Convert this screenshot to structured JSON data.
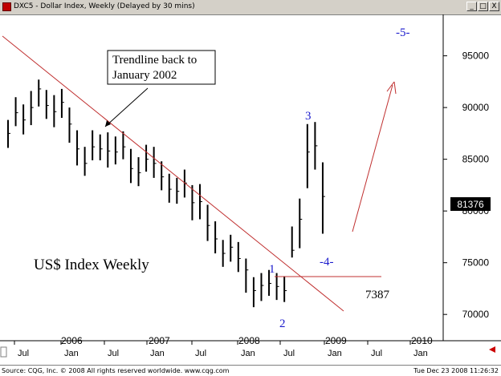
{
  "window": {
    "title": "DXC5 - Dollar Index, Weekly (Delayed by 30 mins)",
    "minimize_glyph": "_",
    "restore_glyph": "□",
    "close_glyph": "X"
  },
  "statusbar": {
    "left": "Source: CQG, Inc. © 2008 All rights reserved worldwide. www.cqg.com",
    "right": "Tue Dec 23 2008 11:26:32"
  },
  "colors": {
    "bars": "#000000",
    "trendline": "#c03030",
    "wave_labels": "#1a1acc",
    "forecast_arrow": "#c03030",
    "last_price_box": "#000000"
  },
  "chart_data": {
    "type": "ohlc",
    "title": "US$ Index Weekly",
    "ylim": [
      68000,
      99000
    ],
    "y_ticks": [
      "70000",
      "75000",
      "80000",
      "85000",
      "90000",
      "95000"
    ],
    "x_month_labels": [
      "Jul",
      "Jan",
      "Jul",
      "Jan",
      "Jul",
      "Jan",
      "Jul",
      "Jan",
      "Jul",
      "Jan"
    ],
    "x_year_labels": [
      "2006",
      "2007",
      "2008",
      "2009",
      "2010"
    ],
    "last_price": "81376",
    "grid": false,
    "series": [
      {
        "x": [
          "2005-07",
          "2005-08",
          "2005-09",
          "2005-10",
          "2005-11",
          "2005-12",
          "2006-01",
          "2006-02",
          "2006-03",
          "2006-04",
          "2006-05",
          "2006-06",
          "2006-07",
          "2006-08",
          "2006-09",
          "2006-10",
          "2006-11",
          "2006-12",
          "2007-01",
          "2007-02",
          "2007-03",
          "2007-04",
          "2007-05",
          "2007-06",
          "2007-07",
          "2007-08",
          "2007-09",
          "2007-10",
          "2007-11",
          "2007-12",
          "2008-01",
          "2008-02",
          "2008-03",
          "2008-04",
          "2008-05",
          "2008-06",
          "2008-07",
          "2008-08",
          "2008-09",
          "2008-10",
          "2008-11",
          "2008-12"
        ],
        "close": [
          87500,
          89500,
          88800,
          90000,
          91800,
          90200,
          89600,
          90500,
          88400,
          86000,
          84600,
          86200,
          86000,
          85800,
          85700,
          86200,
          84100,
          83700,
          85000,
          84600,
          83300,
          82100,
          81900,
          82700,
          80800,
          80900,
          78600,
          77300,
          75900,
          76500,
          75400,
          74300,
          72300,
          72800,
          73000,
          72700,
          72300,
          76200,
          79200,
          85700,
          86300,
          81400
        ],
        "high": [
          88800,
          91000,
          90300,
          91600,
          92700,
          91700,
          91200,
          91800,
          90000,
          87800,
          86200,
          87800,
          87400,
          87600,
          87200,
          87700,
          86000,
          85200,
          86400,
          86200,
          84800,
          83600,
          83200,
          84000,
          82500,
          82600,
          80600,
          79000,
          77200,
          77700,
          77000,
          75400,
          73600,
          74000,
          74300,
          74000,
          73700,
          78500,
          81200,
          88400,
          88600,
          84700
        ],
        "low": [
          86100,
          88200,
          87400,
          88300,
          90100,
          88900,
          88100,
          89000,
          86600,
          84400,
          83400,
          84900,
          84900,
          84200,
          84500,
          85000,
          82700,
          82400,
          83800,
          83200,
          82000,
          80800,
          80700,
          81300,
          79100,
          79200,
          77100,
          75900,
          74600,
          75100,
          74100,
          72100,
          70700,
          71300,
          71800,
          71400,
          71200,
          75500,
          76400,
          82200,
          84000,
          77800
        ]
      }
    ],
    "annotations": {
      "chart_label": "US$ Index Weekly",
      "trendline_note_1": "Trendline back to",
      "trendline_note_2": "January 2002",
      "wave_1": "1",
      "wave_2": "2",
      "wave_3": "3",
      "wave_4": "-4-",
      "wave_5": "-5-",
      "support_value": "7387"
    }
  }
}
